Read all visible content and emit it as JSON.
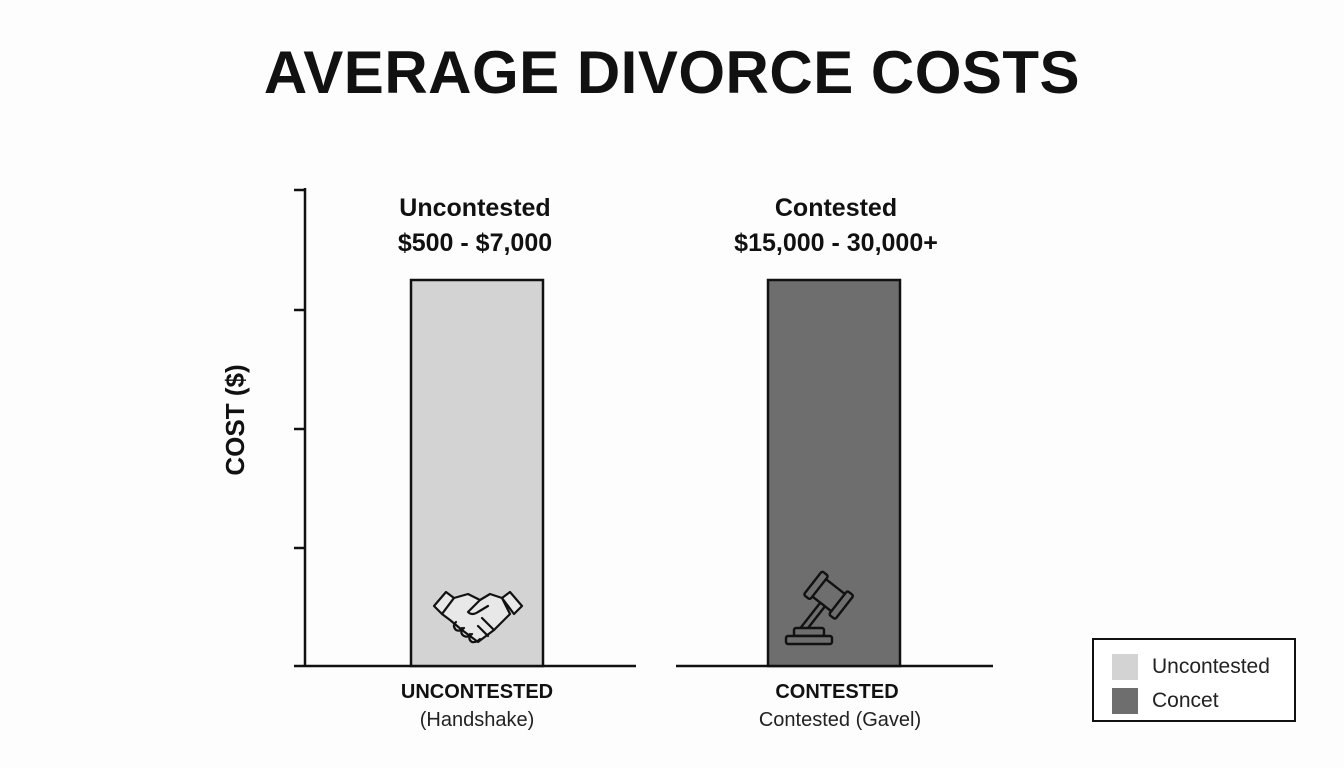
{
  "chart_data": {
    "type": "bar",
    "title": "AVERAGE DIVORCE COSTS",
    "ylabel": "COST ($)",
    "categories": [
      "UNCONTESTED",
      "CONTESTED"
    ],
    "category_sublabels": [
      "(Handshake)",
      "Contested (Gavel)"
    ],
    "bar_labels": [
      {
        "name": "Uncontested",
        "range": "$500 - $7,000"
      },
      {
        "name": "Contested",
        "range": "$15,000 - 30,000+"
      }
    ],
    "series": [
      {
        "values": [
          1,
          1
        ],
        "relative_height": "equal"
      }
    ],
    "bar_icons": [
      "handshake-icon",
      "gavel-icon"
    ],
    "colors": [
      "#d3d3d3",
      "#6e6e6e"
    ],
    "grid": false,
    "legend": {
      "position": "bottom-right",
      "entries": [
        {
          "label": "Uncontested",
          "color": "#d3d3d3"
        },
        {
          "label": "Concet",
          "color": "#6e6e6e"
        }
      ]
    }
  }
}
